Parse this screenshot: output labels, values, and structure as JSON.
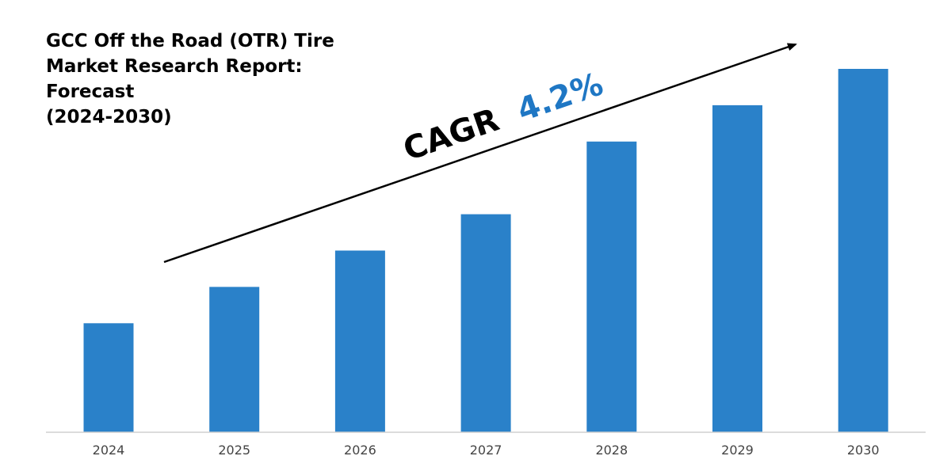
{
  "chart_data": {
    "type": "bar",
    "title": "GCC Off the Road (OTR) Tire\nMarket Research Report: Forecast\n(2024-2030)",
    "categories": [
      "2024",
      "2025",
      "2026",
      "2027",
      "2028",
      "2029",
      "2030"
    ],
    "values": [
      30,
      40,
      50,
      60,
      80,
      90,
      100
    ],
    "xlabel": "",
    "ylabel": "",
    "ylim": [
      0,
      100
    ],
    "grid": false,
    "legend": "none",
    "annotation": {
      "prefix": "CAGR",
      "value": "4.2%",
      "prefix_color": "#000000",
      "value_color": "#1f77c4"
    }
  },
  "colors": {
    "bar": "#2a81c9",
    "axis": "#d0d0d0",
    "arrow": "#000000"
  }
}
